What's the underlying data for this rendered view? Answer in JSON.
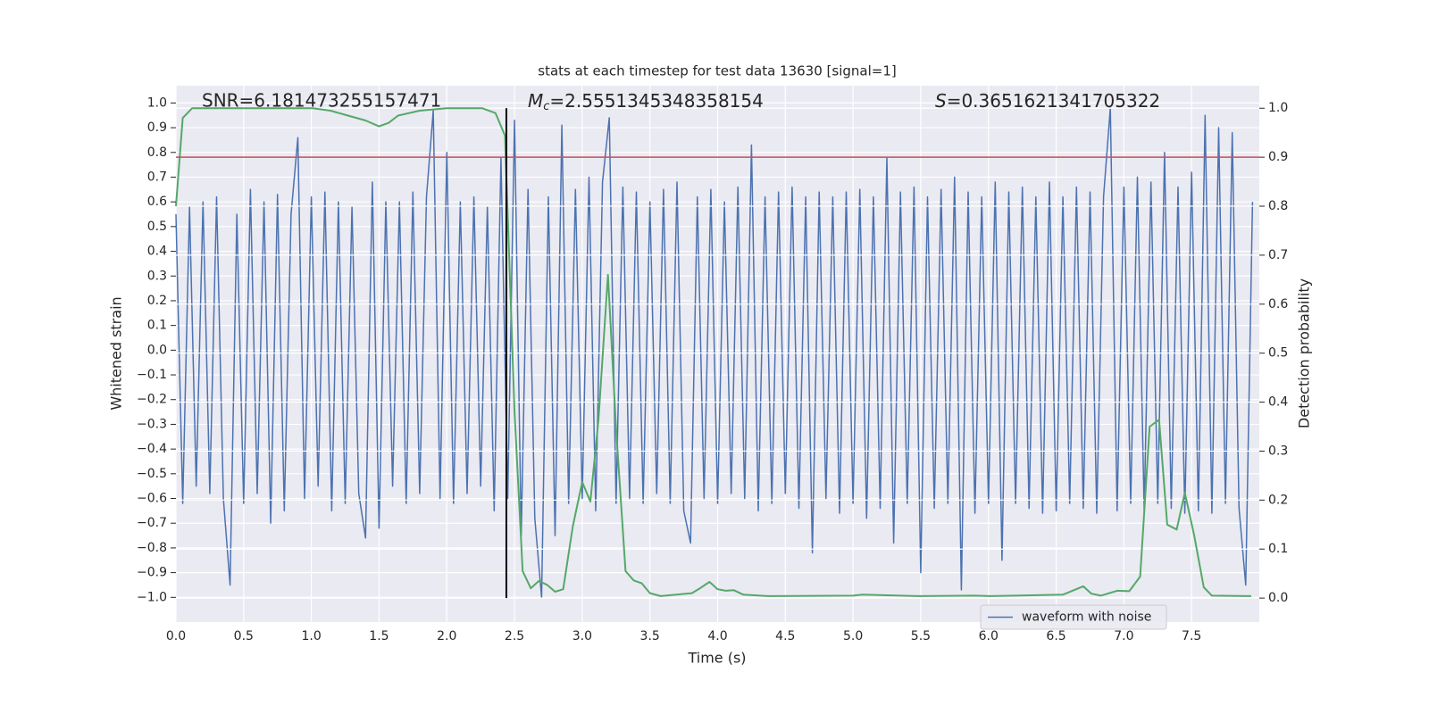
{
  "chart_data": {
    "type": "line",
    "title": "stats at each timestep for test data 13630 [signal=1]",
    "xlabel": "Time (s)",
    "ylabel": "Whitened strain",
    "y2label": "Detection probability",
    "annotations": {
      "snr": "SNR=6.181473255157471",
      "mc_symbol": "M",
      "mc_subscript": "c",
      "mc_text": "=2.5551345348358154",
      "s_symbol": "S",
      "s_text": "=0.3651621341705322"
    },
    "xlim": [
      0,
      8.0
    ],
    "ylim": [
      -1.1,
      1.07
    ],
    "y2lim": [
      -0.049,
      1.046
    ],
    "grid": true,
    "legend": "lower right",
    "xticks": [
      {
        "value": 0,
        "label": "0.0"
      },
      {
        "value": 0.5,
        "label": "0.5"
      },
      {
        "value": 1,
        "label": "1.0"
      },
      {
        "value": 1.5,
        "label": "1.5"
      },
      {
        "value": 2,
        "label": "2.0"
      },
      {
        "value": 2.5,
        "label": "2.5"
      },
      {
        "value": 3,
        "label": "3.0"
      },
      {
        "value": 3.5,
        "label": "3.5"
      },
      {
        "value": 4,
        "label": "4.0"
      },
      {
        "value": 4.5,
        "label": "4.5"
      },
      {
        "value": 5,
        "label": "5.0"
      },
      {
        "value": 5.5,
        "label": "5.5"
      },
      {
        "value": 6,
        "label": "6.0"
      },
      {
        "value": 6.5,
        "label": "6.5"
      },
      {
        "value": 7,
        "label": "7.0"
      },
      {
        "value": 7.5,
        "label": "7.5"
      }
    ],
    "yticks": [
      {
        "value": -1,
        "label": "−1.0"
      },
      {
        "value": -0.9,
        "label": "−0.9"
      },
      {
        "value": -0.8,
        "label": "−0.8"
      },
      {
        "value": -0.7,
        "label": "−0.7"
      },
      {
        "value": -0.6,
        "label": "−0.6"
      },
      {
        "value": -0.5,
        "label": "−0.5"
      },
      {
        "value": -0.4,
        "label": "−0.4"
      },
      {
        "value": -0.3,
        "label": "−0.3"
      },
      {
        "value": -0.2,
        "label": "−0.2"
      },
      {
        "value": -0.1,
        "label": "−0.1"
      },
      {
        "value": 0,
        "label": "0.0"
      },
      {
        "value": 0.1,
        "label": "0.1"
      },
      {
        "value": 0.2,
        "label": "0.2"
      },
      {
        "value": 0.3,
        "label": "0.3"
      },
      {
        "value": 0.4,
        "label": "0.4"
      },
      {
        "value": 0.5,
        "label": "0.5"
      },
      {
        "value": 0.6,
        "label": "0.6"
      },
      {
        "value": 0.7,
        "label": "0.7"
      },
      {
        "value": 0.8,
        "label": "0.8"
      },
      {
        "value": 0.9,
        "label": "0.9"
      },
      {
        "value": 1,
        "label": "1.0"
      }
    ],
    "y2ticks": [
      {
        "value": 0,
        "label": "0.0"
      },
      {
        "value": 0.1,
        "label": "0.1"
      },
      {
        "value": 0.2,
        "label": "0.2"
      },
      {
        "value": 0.3,
        "label": "0.3"
      },
      {
        "value": 0.4,
        "label": "0.4"
      },
      {
        "value": 0.5,
        "label": "0.5"
      },
      {
        "value": 0.6,
        "label": "0.6"
      },
      {
        "value": 0.7,
        "label": "0.7"
      },
      {
        "value": 0.8,
        "label": "0.8"
      },
      {
        "value": 0.9,
        "label": "0.9"
      },
      {
        "value": 1,
        "label": "1.0"
      }
    ],
    "threshold": {
      "value": 0.9,
      "axis": "y2",
      "color": "#c44e52"
    },
    "marker": {
      "x": 2.44,
      "from": 0,
      "to": 1,
      "axis": "y2",
      "color": "#000000"
    },
    "series": [
      {
        "name": "waveform with noise",
        "color": "#4c72b0",
        "axis": "y",
        "x": [
          0,
          0.05,
          0.1,
          0.15,
          0.2,
          0.25,
          0.3,
          0.35,
          0.4,
          0.45,
          0.5,
          0.55,
          0.6,
          0.65,
          0.7,
          0.75,
          0.8,
          0.85,
          0.9,
          0.95,
          1,
          1.05,
          1.1,
          1.15,
          1.2,
          1.25,
          1.3,
          1.35,
          1.4,
          1.45,
          1.5,
          1.55,
          1.6,
          1.65,
          1.7,
          1.75,
          1.8,
          1.85,
          1.9,
          1.95,
          2,
          2.05,
          2.1,
          2.15,
          2.2,
          2.25,
          2.3,
          2.35,
          2.4,
          2.45,
          2.5,
          2.55,
          2.6,
          2.65,
          2.7,
          2.75,
          2.8,
          2.85,
          2.9,
          2.95,
          3,
          3.05,
          3.1,
          3.15,
          3.2,
          3.25,
          3.3,
          3.35,
          3.4,
          3.45,
          3.5,
          3.55,
          3.6,
          3.65,
          3.7,
          3.75,
          3.8,
          3.85,
          3.9,
          3.95,
          4,
          4.05,
          4.1,
          4.15,
          4.2,
          4.25,
          4.3,
          4.35,
          4.4,
          4.45,
          4.5,
          4.55,
          4.6,
          4.65,
          4.7,
          4.75,
          4.8,
          4.85,
          4.9,
          4.95,
          5,
          5.05,
          5.1,
          5.15,
          5.2,
          5.25,
          5.3,
          5.35,
          5.4,
          5.45,
          5.5,
          5.55,
          5.6,
          5.65,
          5.7,
          5.75,
          5.8,
          5.85,
          5.9,
          5.95,
          6,
          6.05,
          6.1,
          6.15,
          6.2,
          6.25,
          6.3,
          6.35,
          6.4,
          6.45,
          6.5,
          6.55,
          6.6,
          6.65,
          6.7,
          6.75,
          6.8,
          6.85,
          6.9,
          6.95,
          7,
          7.05,
          7.1,
          7.15,
          7.2,
          7.25,
          7.3,
          7.35,
          7.4,
          7.45,
          7.5,
          7.55,
          7.6,
          7.65,
          7.7,
          7.75,
          7.8,
          7.85,
          7.9,
          7.95
        ],
        "values": [
          0.55,
          -0.62,
          0.58,
          -0.55,
          0.6,
          -0.58,
          0.62,
          -0.6,
          -0.95,
          0.55,
          -0.62,
          0.65,
          -0.58,
          0.6,
          -0.7,
          0.63,
          -0.65,
          0.55,
          0.86,
          -0.6,
          0.62,
          -0.55,
          0.64,
          -0.65,
          0.6,
          -0.62,
          0.58,
          -0.58,
          -0.76,
          0.68,
          -0.72,
          0.6,
          -0.55,
          0.6,
          -0.62,
          0.64,
          -0.58,
          0.62,
          0.97,
          -0.6,
          0.8,
          -0.62,
          0.6,
          -0.58,
          0.62,
          -0.55,
          0.58,
          -0.65,
          0.78,
          -0.6,
          0.93,
          -0.75,
          0.65,
          -0.68,
          -1.0,
          0.62,
          -0.75,
          0.91,
          -0.62,
          0.65,
          -0.6,
          0.7,
          -0.65,
          0.68,
          0.94,
          -0.62,
          0.66,
          -0.6,
          0.64,
          -0.62,
          0.6,
          -0.58,
          0.65,
          -0.62,
          0.68,
          -0.65,
          -0.78,
          0.62,
          -0.6,
          0.65,
          -0.62,
          0.6,
          -0.58,
          0.66,
          -0.6,
          0.83,
          -0.65,
          0.62,
          -0.62,
          0.64,
          -0.58,
          0.66,
          -0.64,
          0.62,
          -0.82,
          0.64,
          -0.6,
          0.62,
          -0.66,
          0.64,
          -0.62,
          0.65,
          -0.68,
          0.62,
          -0.64,
          0.78,
          -0.78,
          0.64,
          -0.62,
          0.66,
          -0.9,
          0.62,
          -0.64,
          0.65,
          -0.62,
          0.7,
          -0.97,
          0.64,
          -0.66,
          0.62,
          -0.62,
          0.68,
          -0.85,
          0.64,
          -0.62,
          0.66,
          -0.64,
          0.62,
          -0.66,
          0.68,
          -0.65,
          0.62,
          -0.62,
          0.66,
          -0.64,
          0.64,
          -0.66,
          0.62,
          0.98,
          -0.65,
          0.66,
          -0.62,
          0.7,
          -0.65,
          0.68,
          -0.62,
          0.8,
          -0.64,
          0.66,
          -0.66,
          0.72,
          -0.65,
          0.95,
          -0.66,
          0.9,
          -0.62,
          0.88,
          -0.64,
          -0.95,
          0.6
        ]
      },
      {
        "name": "detection probability",
        "color": "#55a868",
        "axis": "y2",
        "x": [
          0,
          0.05,
          0.12,
          1.01,
          1.14,
          1.27,
          1.4,
          1.5,
          1.57,
          1.64,
          1.8,
          2.0,
          2.26,
          2.36,
          2.43,
          2.5,
          2.56,
          2.62,
          2.68,
          2.74,
          2.8,
          2.86,
          2.93,
          3.0,
          3.06,
          3.12,
          3.19,
          3.25,
          3.32,
          3.38,
          3.44,
          3.5,
          3.58,
          3.81,
          3.87,
          3.94,
          4.0,
          4.06,
          4.12,
          4.19,
          4.37,
          5.0,
          5.07,
          5.49,
          5.9,
          6.01,
          6.55,
          6.7,
          6.76,
          6.83,
          6.95,
          7.04,
          7.12,
          7.19,
          7.26,
          7.32,
          7.39,
          7.45,
          7.52,
          7.59,
          7.65,
          7.94
        ],
        "values": [
          0.8,
          0.98,
          1.0,
          1.0,
          0.995,
          0.985,
          0.975,
          0.963,
          0.97,
          0.985,
          0.995,
          1.0,
          1.0,
          0.99,
          0.944,
          0.38,
          0.055,
          0.02,
          0.035,
          0.027,
          0.013,
          0.018,
          0.146,
          0.237,
          0.197,
          0.364,
          0.66,
          0.346,
          0.055,
          0.036,
          0.03,
          0.01,
          0.004,
          0.01,
          0.02,
          0.033,
          0.018,
          0.015,
          0.016,
          0.007,
          0.004,
          0.005,
          0.007,
          0.004,
          0.005,
          0.004,
          0.007,
          0.024,
          0.009,
          0.005,
          0.015,
          0.014,
          0.044,
          0.35,
          0.364,
          0.15,
          0.14,
          0.215,
          0.127,
          0.022,
          0.005,
          0.004
        ]
      }
    ]
  }
}
